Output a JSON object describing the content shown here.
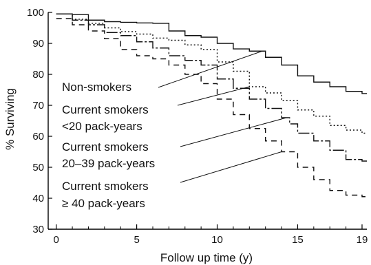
{
  "chart_data": {
    "type": "line",
    "xlabel": "Follow up time (y)",
    "ylabel": "% Surviving",
    "xlim": [
      -0.5,
      19.3
    ],
    "ylim": [
      30,
      100
    ],
    "x_ticks": [
      0,
      5,
      10,
      15,
      19
    ],
    "x_tick_labels": [
      "0",
      "5",
      "10",
      "15",
      "19"
    ],
    "x_minor_ticks": [
      1,
      2,
      3,
      4,
      6,
      7,
      8,
      9,
      11,
      12,
      13,
      14,
      16,
      17,
      18
    ],
    "y_ticks": [
      30,
      40,
      50,
      60,
      70,
      80,
      90,
      100
    ],
    "y_tick_labels": [
      "30",
      "40",
      "50",
      "60",
      "70",
      "80",
      "90",
      "100"
    ],
    "grid": false,
    "series": [
      {
        "name": "Non-smokers",
        "line_style": "solid",
        "annotation_lines": [
          "Non-smokers"
        ],
        "pointer_x": 12.8,
        "x": [
          0,
          0.6,
          1,
          2,
          3,
          4,
          5,
          6,
          7,
          8,
          9,
          10,
          11,
          12,
          13,
          14,
          15,
          16,
          17,
          18,
          19
        ],
        "values": [
          99.5,
          99.5,
          99.3,
          97.5,
          97.0,
          96.8,
          96.6,
          96.5,
          94.0,
          92.5,
          92.0,
          90.0,
          88.2,
          87.5,
          85.5,
          83.0,
          79.5,
          77.5,
          76.0,
          74.5,
          73.8
        ]
      },
      {
        "name": "Current smokers <20 pack-years",
        "line_style": "dotted",
        "annotation_lines": [
          "Current smokers",
          "<20 pack-years"
        ],
        "pointer_x": 12,
        "x": [
          0,
          1,
          2,
          3,
          4,
          5,
          6,
          7,
          8,
          9,
          10,
          11,
          12,
          13,
          14,
          15,
          16,
          17,
          18,
          19
        ],
        "values": [
          99.5,
          97.8,
          96.5,
          95.0,
          93.8,
          93.0,
          91.7,
          91.0,
          89.5,
          88.0,
          84.0,
          81.0,
          76.0,
          74.0,
          71.5,
          68.5,
          66.5,
          63.5,
          62.0,
          61.0
        ]
      },
      {
        "name": "Current smokers 20-39 pack-years",
        "line_style": "long-dash-dot",
        "annotation_lines": [
          "Current smokers",
          "20–39 pack-years"
        ],
        "pointer_x": 14.3,
        "x": [
          0,
          1,
          2,
          3,
          4,
          5,
          6,
          7,
          8,
          9,
          10,
          11,
          12,
          13,
          14,
          14.5,
          15,
          16,
          17,
          18,
          19
        ],
        "values": [
          99.5,
          97.5,
          96.0,
          93.5,
          92.5,
          90.5,
          88.5,
          86.0,
          84.5,
          83.0,
          78.5,
          75.5,
          72.0,
          69.0,
          66.0,
          64.0,
          61.0,
          58.5,
          55.5,
          52.5,
          52.0
        ]
      },
      {
        "name": "Current smokers ≥ 40 pack-years",
        "line_style": "dashed",
        "annotation_lines": [
          "Current smokers",
          "≥ 40 pack-years"
        ],
        "pointer_x": 14,
        "x": [
          0,
          1,
          2,
          3,
          4,
          5,
          6,
          7,
          8,
          9,
          10,
          11,
          12,
          13,
          14,
          15,
          16,
          17,
          18,
          19
        ],
        "values": [
          98.0,
          96.0,
          94.0,
          91.5,
          88.0,
          86.0,
          85.0,
          83.0,
          80.0,
          77.0,
          72.0,
          67.0,
          62.5,
          58.5,
          55.0,
          50.0,
          46.0,
          42.5,
          41.0,
          40.5
        ]
      }
    ]
  }
}
